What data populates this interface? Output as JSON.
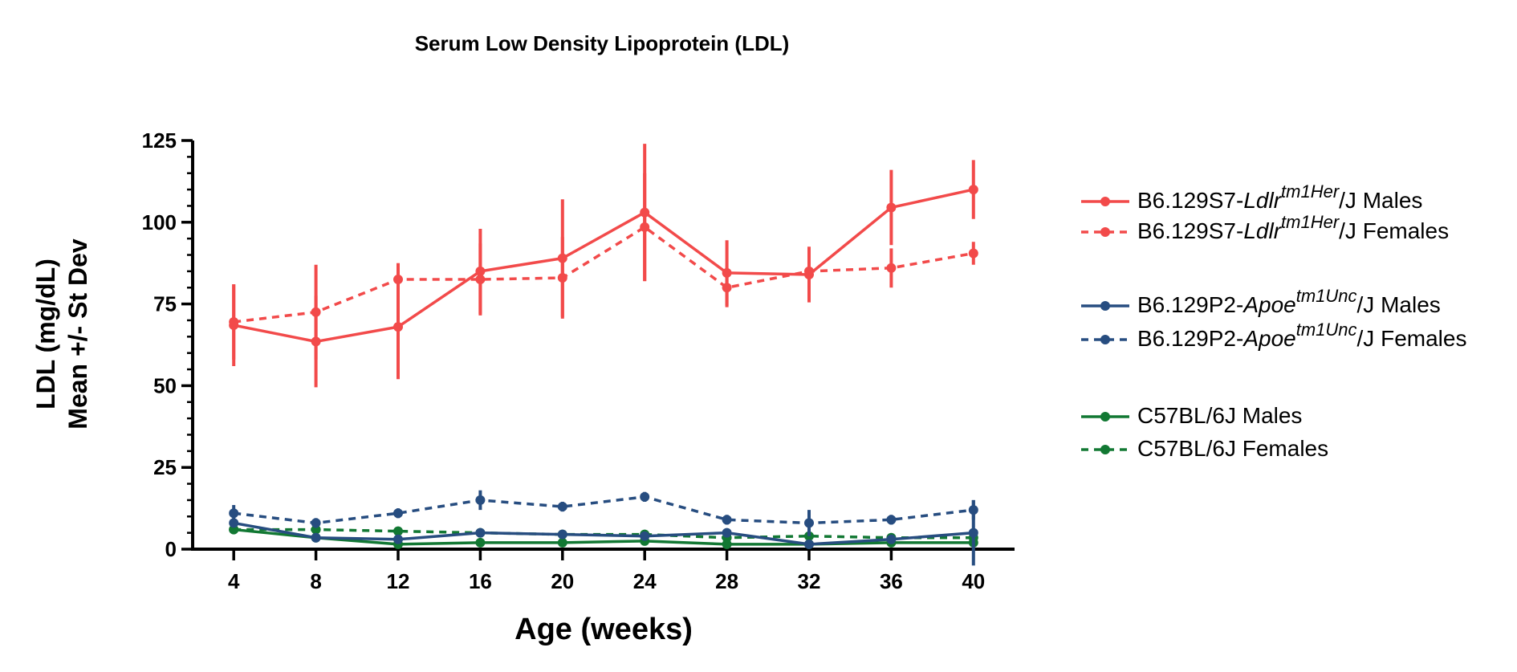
{
  "chart_data": {
    "type": "line",
    "title": "Serum Low Density Lipoprotein (LDL)",
    "xlabel": "Age (weeks)",
    "ylabel_lines": [
      "LDL (mg/dL)",
      "Mean +/- St Dev"
    ],
    "x": [
      4,
      8,
      12,
      16,
      20,
      24,
      28,
      32,
      36,
      40
    ],
    "xlim": [
      2,
      42
    ],
    "ylim": [
      0,
      125
    ],
    "yticks_major": [
      0,
      25,
      50,
      75,
      100,
      125
    ],
    "yticks_minor_step": 5,
    "grid": false,
    "legend_position": "right",
    "colors": {
      "red": "#f24a4a",
      "blue": "#274d80",
      "green": "#127833"
    },
    "series": [
      {
        "name": "B6.129S7-Ldlrtm1Her/J Males",
        "legend_parts": [
          [
            "B6.129S7-",
            "normal"
          ],
          [
            "Ldlr",
            "italic"
          ],
          [
            "tm1Her",
            "italic-sup"
          ],
          [
            "/J Males",
            "normal"
          ]
        ],
        "color": "red",
        "dashed": false,
        "values": [
          68.5,
          63.5,
          68,
          85,
          89,
          103,
          84.5,
          84,
          104.5,
          110
        ],
        "err": [
          12.5,
          14,
          16,
          13,
          18,
          21,
          10,
          8.5,
          11.5,
          9
        ]
      },
      {
        "name": "B6.129S7-Ldlrtm1Her/J Females",
        "legend_parts": [
          [
            "B6.129S7-",
            "normal"
          ],
          [
            "Ldlr",
            "italic"
          ],
          [
            "tm1Her",
            "italic-sup"
          ],
          [
            "/J Females",
            "normal"
          ]
        ],
        "color": "red",
        "dashed": true,
        "values": [
          69.5,
          72.5,
          82.5,
          82.5,
          83,
          98.5,
          80,
          85,
          86,
          90.5
        ],
        "err": [
          11.5,
          14.5,
          5,
          11,
          12.5,
          16.5,
          6,
          7.5,
          6,
          3.5
        ]
      },
      {
        "name": "B6.129P2-Apoetm1Unc/J Males",
        "legend_parts": [
          [
            "B6.129P2-",
            "normal"
          ],
          [
            "Apoe",
            "italic"
          ],
          [
            "tm1Unc",
            "italic-sup"
          ],
          [
            "/J Males",
            "normal"
          ]
        ],
        "color": "blue",
        "dashed": false,
        "values": [
          8,
          3.5,
          3,
          5,
          4.5,
          4,
          5,
          1.5,
          3,
          5
        ],
        "err": [
          1,
          0.5,
          0.5,
          0.5,
          0.5,
          0.5,
          0.5,
          0.5,
          0.5,
          10
        ]
      },
      {
        "name": "B6.129P2-Apoetm1Unc/J Females",
        "legend_parts": [
          [
            "B6.129P2-",
            "normal"
          ],
          [
            "Apoe",
            "italic"
          ],
          [
            "tm1Unc",
            "italic-sup"
          ],
          [
            "/J Females",
            "normal"
          ]
        ],
        "color": "blue",
        "dashed": true,
        "values": [
          11,
          8,
          11,
          15,
          13,
          16,
          9,
          8,
          9,
          12
        ],
        "err": [
          2.5,
          1.5,
          1.5,
          3,
          1.5,
          1.5,
          1.5,
          4,
          1.5,
          3
        ]
      },
      {
        "name": "C57BL/6J Males",
        "legend_parts": [
          [
            "C57BL/6J Males",
            "normal"
          ]
        ],
        "color": "green",
        "dashed": false,
        "values": [
          6,
          3.5,
          1.5,
          2,
          2,
          2.5,
          1.5,
          1.5,
          2,
          2
        ],
        "err": [
          0.5,
          0.5,
          0.3,
          0.3,
          0.3,
          0.3,
          0.3,
          0.3,
          0.3,
          0.3
        ]
      },
      {
        "name": "C57BL/6J Females",
        "legend_parts": [
          [
            "C57BL/6J Females",
            "normal"
          ]
        ],
        "color": "green",
        "dashed": true,
        "values": [
          6,
          6,
          5.5,
          5,
          4.5,
          4.5,
          3.5,
          4,
          3.5,
          3.5
        ],
        "err": [
          0.5,
          0.5,
          0.5,
          0.5,
          0.5,
          0.5,
          0.5,
          0.5,
          0.5,
          0.5
        ]
      }
    ]
  }
}
